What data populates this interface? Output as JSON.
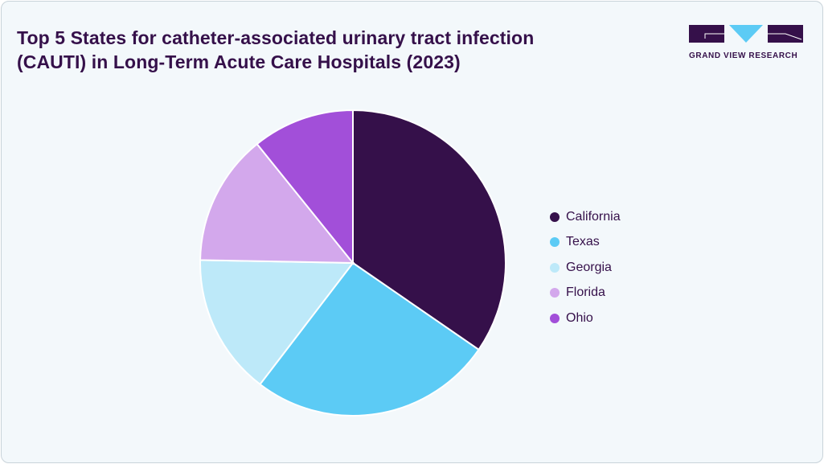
{
  "chart_data": {
    "type": "pie",
    "title": "Top 5 States for catheter-associated urinary tract infection (CAUTI) in Long-Term Acute Care Hospitals (2023)",
    "categories": [
      "California",
      "Texas",
      "Georgia",
      "Florida",
      "Ohio"
    ],
    "values": [
      34.6,
      25.8,
      14.9,
      13.9,
      10.8
    ],
    "colors": [
      "#35104a",
      "#5ccbf5",
      "#bde9f9",
      "#d3a8ec",
      "#a24fd9"
    ],
    "legend_position": "right",
    "start_angle": "top",
    "direction": "clockwise"
  },
  "logo": {
    "text": "GRAND VIEW RESEARCH"
  }
}
